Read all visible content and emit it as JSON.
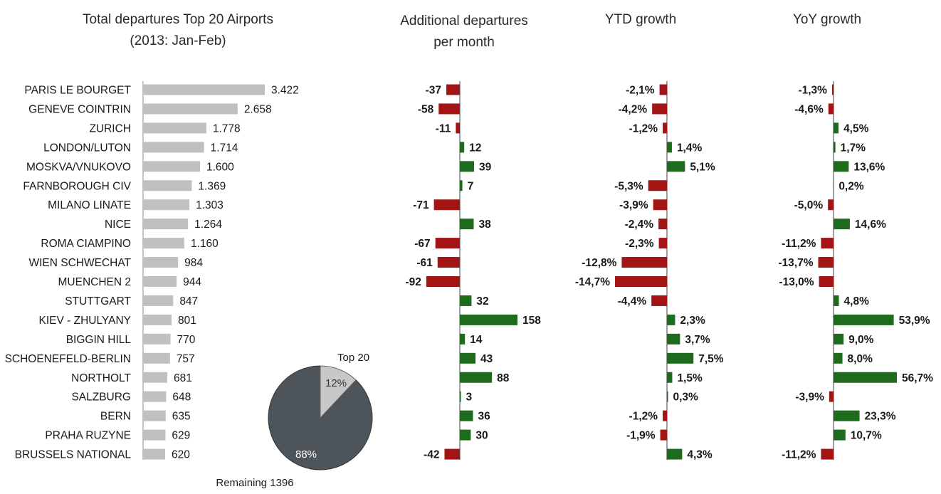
{
  "titles": {
    "total_line1": "Total departures  Top 20 Airports",
    "total_line2": "(2013: Jan-Feb)",
    "additional_line1": "Additional departures",
    "additional_line2": "per month",
    "ytd": "YTD growth",
    "yoy": "YoY growth"
  },
  "colors": {
    "total_bar": "#c0c0c0",
    "positive": "#1e6b1e",
    "negative": "#a31515",
    "axis": "#404040",
    "pie_remaining": "#4d555a",
    "pie_top20": "#c8c8c8"
  },
  "chart_data": [
    {
      "type": "bar",
      "orientation": "horizontal",
      "title": "Total departures  Top 20 Airports (2013: Jan-Feb)",
      "categories": [
        "PARIS LE BOURGET",
        "GENEVE  COINTRIN",
        "ZURICH",
        "LONDON/LUTON",
        "MOSKVA/VNUKOVO",
        "FARNBOROUGH  CIV",
        "MILANO LINATE",
        "NICE",
        "ROMA CIAMPINO",
        "WIEN SCHWECHAT",
        "MUENCHEN  2",
        "STUTTGART",
        "KIEV - ZHULYANY",
        "BIGGIN HILL",
        "SCHOENEFELD-BERLIN",
        "NORTHOLT",
        "SALZBURG",
        "BERN",
        "PRAHA RUZYNE",
        "BRUSSELS  NATIONAL"
      ],
      "values": [
        3422,
        2658,
        1778,
        1714,
        1600,
        1369,
        1303,
        1264,
        1160,
        984,
        944,
        847,
        801,
        770,
        757,
        681,
        648,
        635,
        629,
        620
      ],
      "labels": [
        "3.422",
        "2.658",
        "1.778",
        "1.714",
        "1.600",
        "1.369",
        "1.303",
        "1.264",
        "1.160",
        "984",
        "944",
        "847",
        "801",
        "770",
        "757",
        "681",
        "648",
        "635",
        "629",
        "620"
      ]
    },
    {
      "type": "bar",
      "orientation": "horizontal",
      "title": "Additional departures per month",
      "values": [
        -37,
        -58,
        -11,
        12,
        39,
        7,
        -71,
        38,
        -67,
        -61,
        -92,
        32,
        158,
        14,
        43,
        88,
        3,
        36,
        30,
        -42
      ],
      "labels": [
        "-37",
        "-58",
        "-11",
        "12",
        "39",
        "7",
        "-71",
        "38",
        "-67",
        "-61",
        "-92",
        "32",
        "158",
        "14",
        "43",
        "88",
        "3",
        "36",
        "30",
        "-42"
      ]
    },
    {
      "type": "bar",
      "orientation": "horizontal",
      "title": "YTD growth",
      "values": [
        -2.1,
        -4.2,
        -1.2,
        1.4,
        5.1,
        -5.3,
        -3.9,
        -2.4,
        -2.3,
        -12.8,
        -14.7,
        -4.4,
        2.3,
        3.7,
        7.5,
        1.5,
        0.3,
        -1.2,
        -1.9,
        4.3
      ],
      "labels": [
        "-2,1%",
        "-4,2%",
        "-1,2%",
        "1,4%",
        "5,1%",
        "-5,3%",
        "-3,9%",
        "-2,4%",
        "-2,3%",
        "-12,8%",
        "-14,7%",
        "-4,4%",
        "2,3%",
        "3,7%",
        "7,5%",
        "1,5%",
        "0,3%",
        "-1,2%",
        "-1,9%",
        "4,3%"
      ]
    },
    {
      "type": "bar",
      "orientation": "horizontal",
      "title": "YoY growth",
      "values": [
        -1.3,
        -4.6,
        4.5,
        1.7,
        13.6,
        0.2,
        -5.0,
        14.6,
        -11.2,
        -13.7,
        -13.0,
        4.8,
        53.9,
        9.0,
        8.0,
        56.7,
        -3.9,
        23.3,
        10.7,
        -11.2
      ],
      "labels": [
        "-1,3%",
        "-4,6%",
        "4,5%",
        "1,7%",
        "13,6%",
        "0,2%",
        "-5,0%",
        "14,6%",
        "-11,2%",
        "-13,7%",
        "-13,0%",
        "4,8%",
        "53,9%",
        "9,0%",
        "8,0%",
        "56,7%",
        "-3,9%",
        "23,3%",
        "10,7%",
        "-11,2%"
      ]
    },
    {
      "type": "pie",
      "slices": [
        {
          "label": "Top 20",
          "value": 12,
          "pct_label": "12%"
        },
        {
          "label": "Remaining 1396",
          "value": 88,
          "pct_label": "88%"
        }
      ]
    }
  ]
}
